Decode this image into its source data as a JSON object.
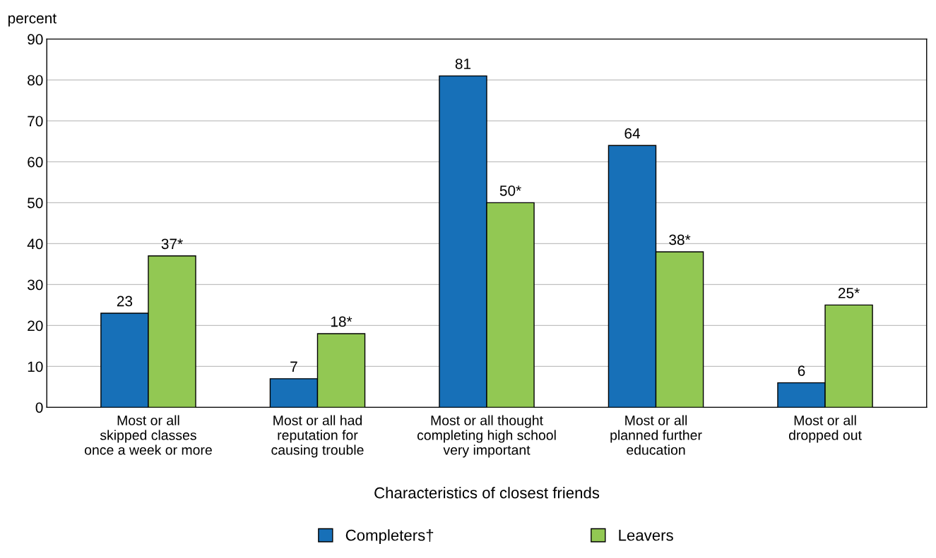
{
  "chart_data": {
    "type": "bar",
    "ylabel": "percent",
    "xlabel": "Characteristics of closest friends",
    "categories": [
      "Most or all\nskipped classes\nonce a week or more",
      "Most or all had\nreputation for\ncausing trouble",
      "Most or all thought\ncompleting high school\nvery important",
      "Most or all\nplanned further\neducation",
      "Most or all\ndropped out"
    ],
    "series": [
      {
        "name": "Completers†",
        "color": "#1770b8",
        "values": [
          23,
          7,
          81,
          64,
          6
        ],
        "value_labels": [
          "23",
          "7",
          "81",
          "64",
          "6"
        ]
      },
      {
        "name": "Leavers",
        "color": "#92c853",
        "values": [
          37,
          18,
          50,
          38,
          25
        ],
        "value_labels": [
          "37*",
          "18*",
          "50*",
          "38*",
          "25*"
        ]
      }
    ],
    "ylim": [
      0,
      90
    ],
    "yticks": [
      0,
      10,
      20,
      30,
      40,
      50,
      60,
      70,
      80,
      90
    ],
    "grid": "y",
    "legend": "bottom"
  }
}
